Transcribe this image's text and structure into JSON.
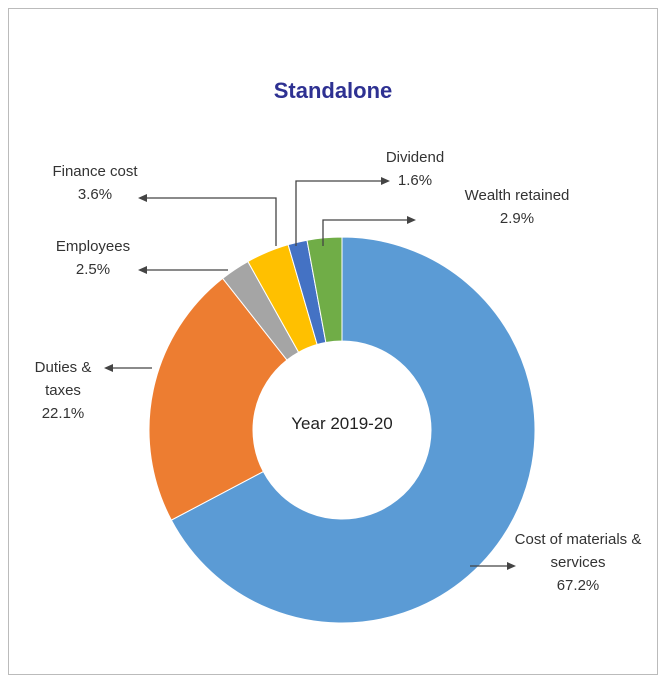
{
  "chart_data": {
    "type": "pie",
    "title": "Standalone",
    "center_label": "Year 2019-20",
    "categories": [
      "Cost of materials & services",
      "Duties & taxes",
      "Employees",
      "Finance cost",
      "Dividend",
      "Wealth retained"
    ],
    "values": [
      67.2,
      22.1,
      2.5,
      3.6,
      1.6,
      2.9
    ],
    "value_labels": [
      "67.2%",
      "22.1%",
      "2.5%",
      "3.6%",
      "1.6%",
      "2.9%"
    ],
    "colors": [
      "#5b9bd5",
      "#ed7d31",
      "#a5a5a5",
      "#ffc000",
      "#4472c4",
      "#70ad47"
    ]
  }
}
